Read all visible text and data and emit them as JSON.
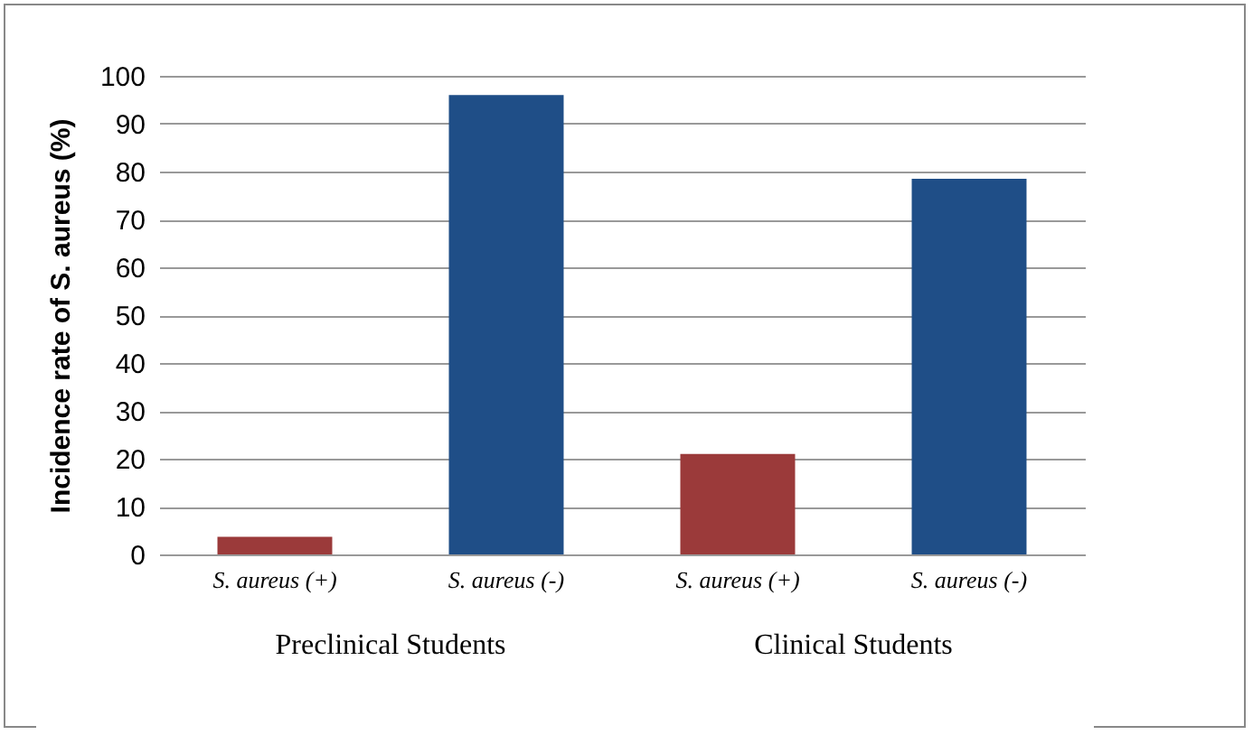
{
  "chart_data": {
    "type": "bar",
    "ylabel": "Incidence rate of S. aureus (%)",
    "categories": [
      "S. aureus (+)",
      "S. aureus (-)",
      "S. aureus (+)",
      "S. aureus (-)"
    ],
    "values": [
      3.7,
      96,
      21,
      78.5
    ],
    "colors": [
      "#9b3a3a",
      "#1f4e87",
      "#9b3a3a",
      "#1f4e87"
    ],
    "ylim": [
      0,
      100
    ],
    "yticks": [
      0,
      10,
      20,
      30,
      40,
      50,
      60,
      70,
      80,
      90,
      100
    ],
    "grid": "y",
    "legend": false,
    "annotations": [
      "Preclinical Students",
      "Clinical Students"
    ]
  }
}
